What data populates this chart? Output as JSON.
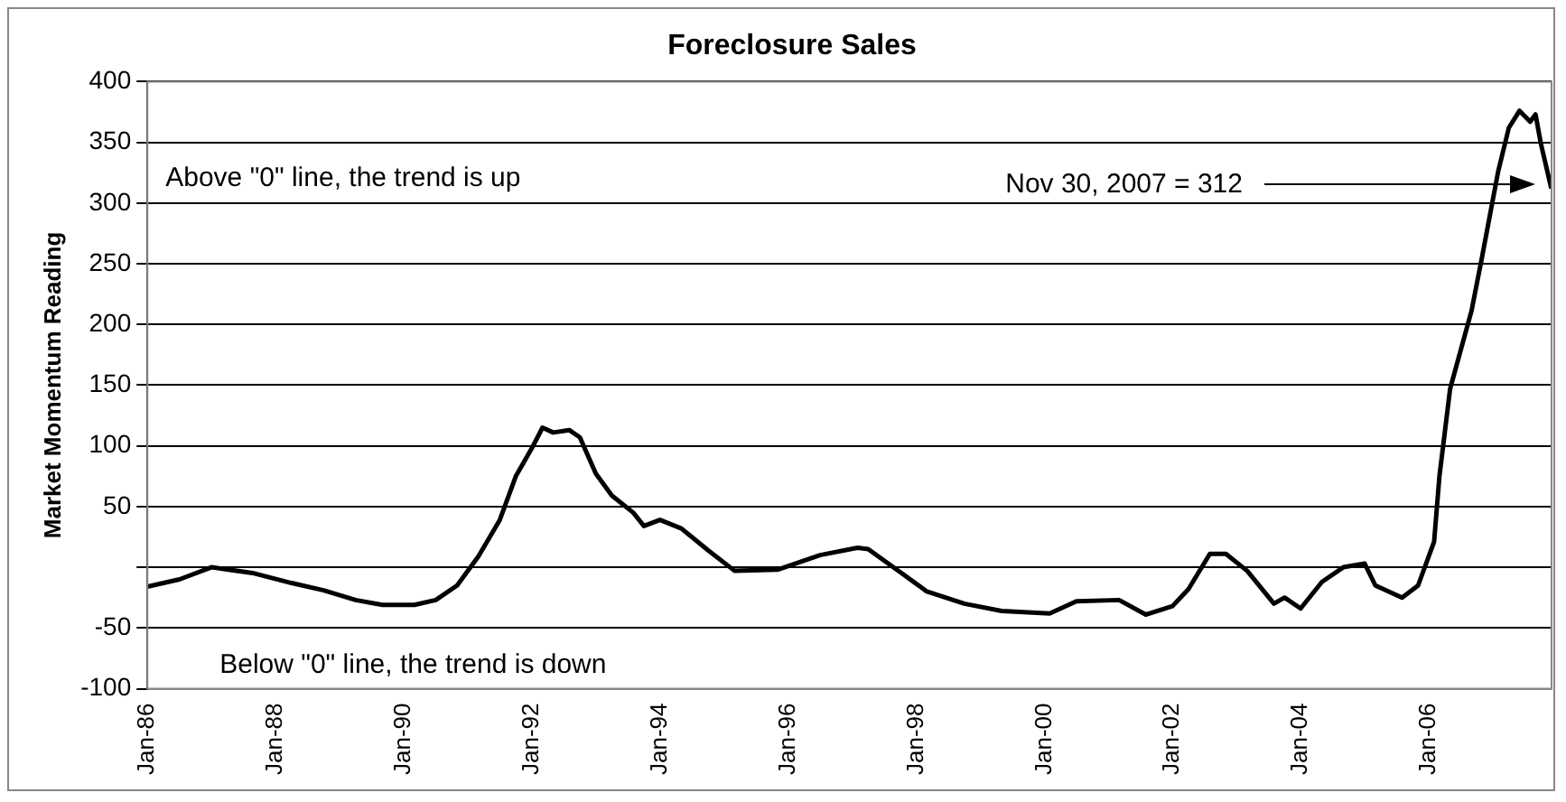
{
  "chart_data": {
    "type": "line",
    "title": "Foreclosure Sales",
    "ylabel": "Market Momentum Reading",
    "x": [
      "1986-01",
      "1986-07",
      "1987-01",
      "1987-09",
      "1988-04",
      "1988-10",
      "1989-04",
      "1989-09",
      "1990-03",
      "1990-07",
      "1990-11",
      "1991-03",
      "1991-07",
      "1991-10",
      "1992-01",
      "1992-03",
      "1992-05",
      "1992-08",
      "1992-10",
      "1993-01",
      "1993-04",
      "1993-08",
      "1993-10",
      "1994-01",
      "1994-05",
      "1994-10",
      "1995-03",
      "1995-11",
      "1996-07",
      "1997-02",
      "1997-04",
      "1997-10",
      "1998-03",
      "1998-10",
      "1999-05",
      "2000-02",
      "2000-07",
      "2001-03",
      "2001-08",
      "2002-01",
      "2002-04",
      "2002-08",
      "2002-11",
      "2003-03",
      "2003-08",
      "2003-10",
      "2004-01",
      "2004-05",
      "2004-09",
      "2005-01",
      "2005-03",
      "2005-08",
      "2005-11",
      "2006-02",
      "2006-03",
      "2006-05",
      "2006-09",
      "2006-11",
      "2007-02",
      "2007-04",
      "2007-06",
      "2007-08",
      "2007-09",
      "2007-10",
      "2007-11-30"
    ],
    "series": [
      {
        "color": "#000000",
        "values": [
          -16,
          -10,
          0,
          -5,
          -13,
          -19,
          -27,
          -31,
          -31,
          -27,
          -15,
          9,
          39,
          75,
          98,
          115,
          111,
          113,
          107,
          77,
          59,
          45,
          34,
          39,
          32,
          14,
          -3,
          -2,
          10,
          16,
          15,
          -4,
          -20,
          -30,
          -36,
          -38,
          -28,
          -27,
          -39,
          -32,
          -18,
          11,
          11,
          -3,
          -30,
          -25,
          -34,
          -12,
          0,
          3,
          -15,
          -25,
          -15,
          21,
          75,
          147,
          211,
          256,
          326,
          362,
          376,
          367,
          373,
          349,
          312
        ]
      }
    ],
    "xlim": [
      "1986-01",
      "2007-12"
    ],
    "xticks": [
      {
        "value": "1986-01",
        "label": "Jan-86"
      },
      {
        "value": "1988-01",
        "label": "Jan-88"
      },
      {
        "value": "1990-01",
        "label": "Jan-90"
      },
      {
        "value": "1992-01",
        "label": "Jan-92"
      },
      {
        "value": "1994-01",
        "label": "Jan-94"
      },
      {
        "value": "1996-01",
        "label": "Jan-96"
      },
      {
        "value": "1998-01",
        "label": "Jan-98"
      },
      {
        "value": "2000-01",
        "label": "Jan-00"
      },
      {
        "value": "2002-01",
        "label": "Jan-02"
      },
      {
        "value": "2004-01",
        "label": "Jan-04"
      },
      {
        "value": "2006-01",
        "label": "Jan-06"
      }
    ],
    "ylim": [
      -100,
      400
    ],
    "yticks": [
      -100,
      -50,
      {
        "value": 0,
        "label": null
      },
      50,
      100,
      150,
      200,
      250,
      300,
      350,
      400
    ],
    "grid": "y",
    "legend": false,
    "marker": "none",
    "line_style": "solid",
    "annotations": [
      "Above \"0\" line, the trend is up",
      "Below \"0\" line, the trend is down",
      "Nov 30, 2007 = 312"
    ]
  }
}
